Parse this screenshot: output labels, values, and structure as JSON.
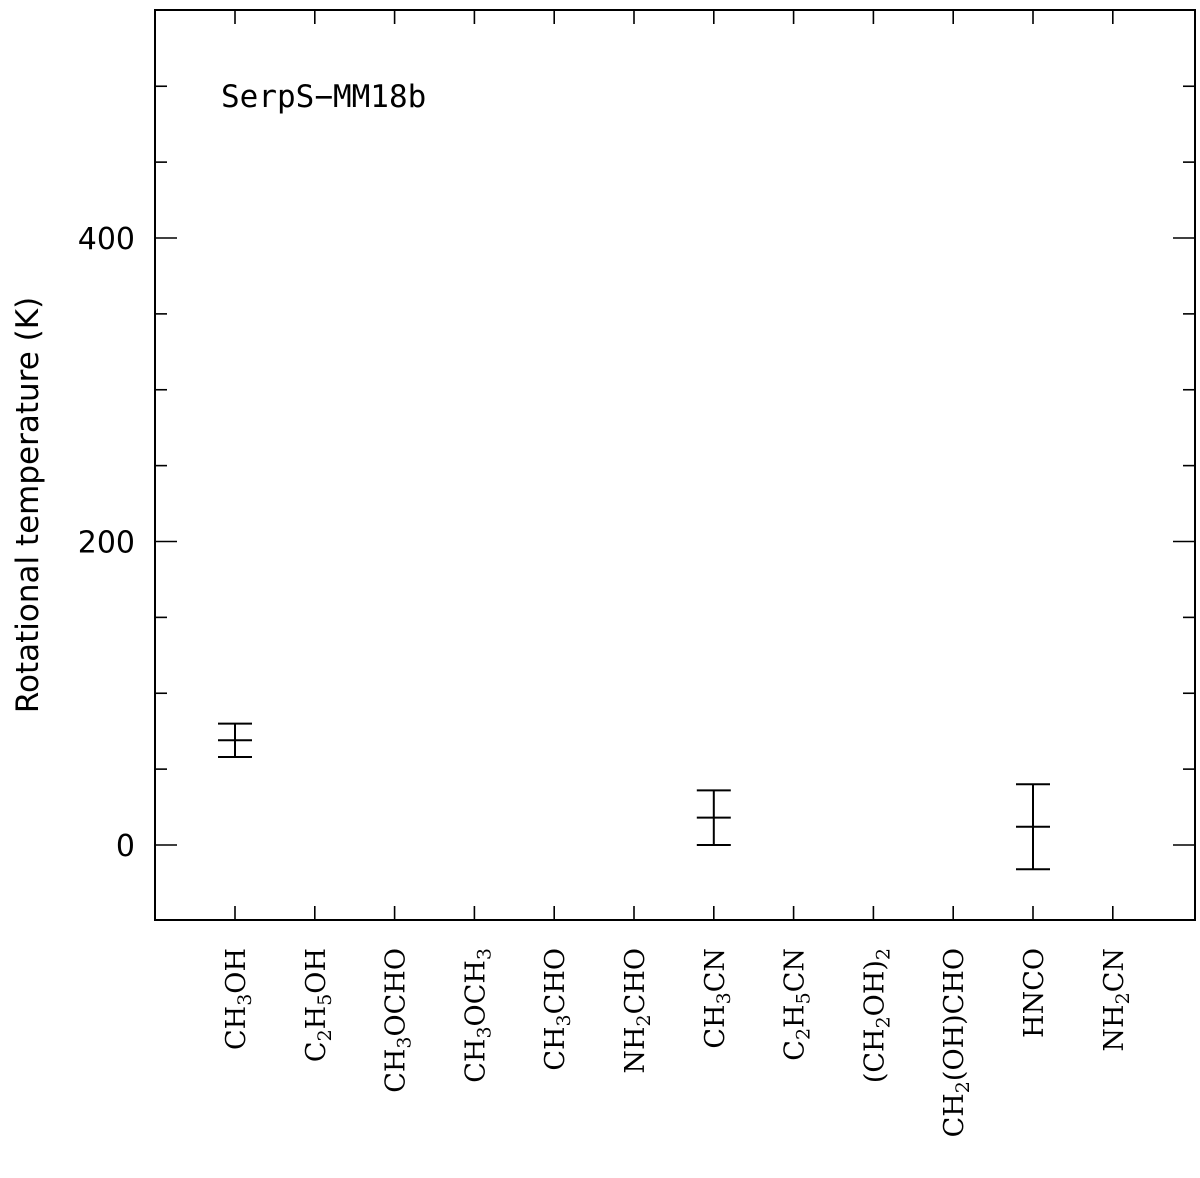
{
  "chart_data": {
    "type": "scatter",
    "annotation": "SerpS−MM18b",
    "ylabel": "Rotational temperature (K)",
    "xlabel": "",
    "ylim": [
      -50,
      550
    ],
    "yticks_major": [
      0,
      200,
      400
    ],
    "yticks_minor_step": 50,
    "categories": [
      [
        {
          "t": "CH"
        },
        {
          "t": "3",
          "sub": true
        },
        {
          "t": "OH"
        }
      ],
      [
        {
          "t": "C"
        },
        {
          "t": "2",
          "sub": true
        },
        {
          "t": "H"
        },
        {
          "t": "5",
          "sub": true
        },
        {
          "t": "OH"
        }
      ],
      [
        {
          "t": "CH"
        },
        {
          "t": "3",
          "sub": true
        },
        {
          "t": "OCHO"
        }
      ],
      [
        {
          "t": "CH"
        },
        {
          "t": "3",
          "sub": true
        },
        {
          "t": "OCH"
        },
        {
          "t": "3",
          "sub": true
        }
      ],
      [
        {
          "t": "CH"
        },
        {
          "t": "3",
          "sub": true
        },
        {
          "t": "CHO"
        }
      ],
      [
        {
          "t": "NH"
        },
        {
          "t": "2",
          "sub": true
        },
        {
          "t": "CHO"
        }
      ],
      [
        {
          "t": "CH"
        },
        {
          "t": "3",
          "sub": true
        },
        {
          "t": "CN"
        }
      ],
      [
        {
          "t": "C"
        },
        {
          "t": "2",
          "sub": true
        },
        {
          "t": "H"
        },
        {
          "t": "5",
          "sub": true
        },
        {
          "t": "CN"
        }
      ],
      [
        {
          "t": "(CH"
        },
        {
          "t": "2",
          "sub": true
        },
        {
          "t": "OH)"
        },
        {
          "t": "2",
          "sub": true
        }
      ],
      [
        {
          "t": "CH"
        },
        {
          "t": "2",
          "sub": true
        },
        {
          "t": "(OH)CHO"
        }
      ],
      [
        {
          "t": "HNCO"
        }
      ],
      [
        {
          "t": "NH"
        },
        {
          "t": "2",
          "sub": true
        },
        {
          "t": "CN"
        }
      ]
    ],
    "points": [
      {
        "category_index": 0,
        "value": 69,
        "err_low": 11,
        "err_high": 11
      },
      {
        "category_index": 6,
        "value": 18,
        "err_low": 18,
        "err_high": 18
      },
      {
        "category_index": 10,
        "value": 12,
        "err_low": 28,
        "err_high": 28
      }
    ]
  }
}
